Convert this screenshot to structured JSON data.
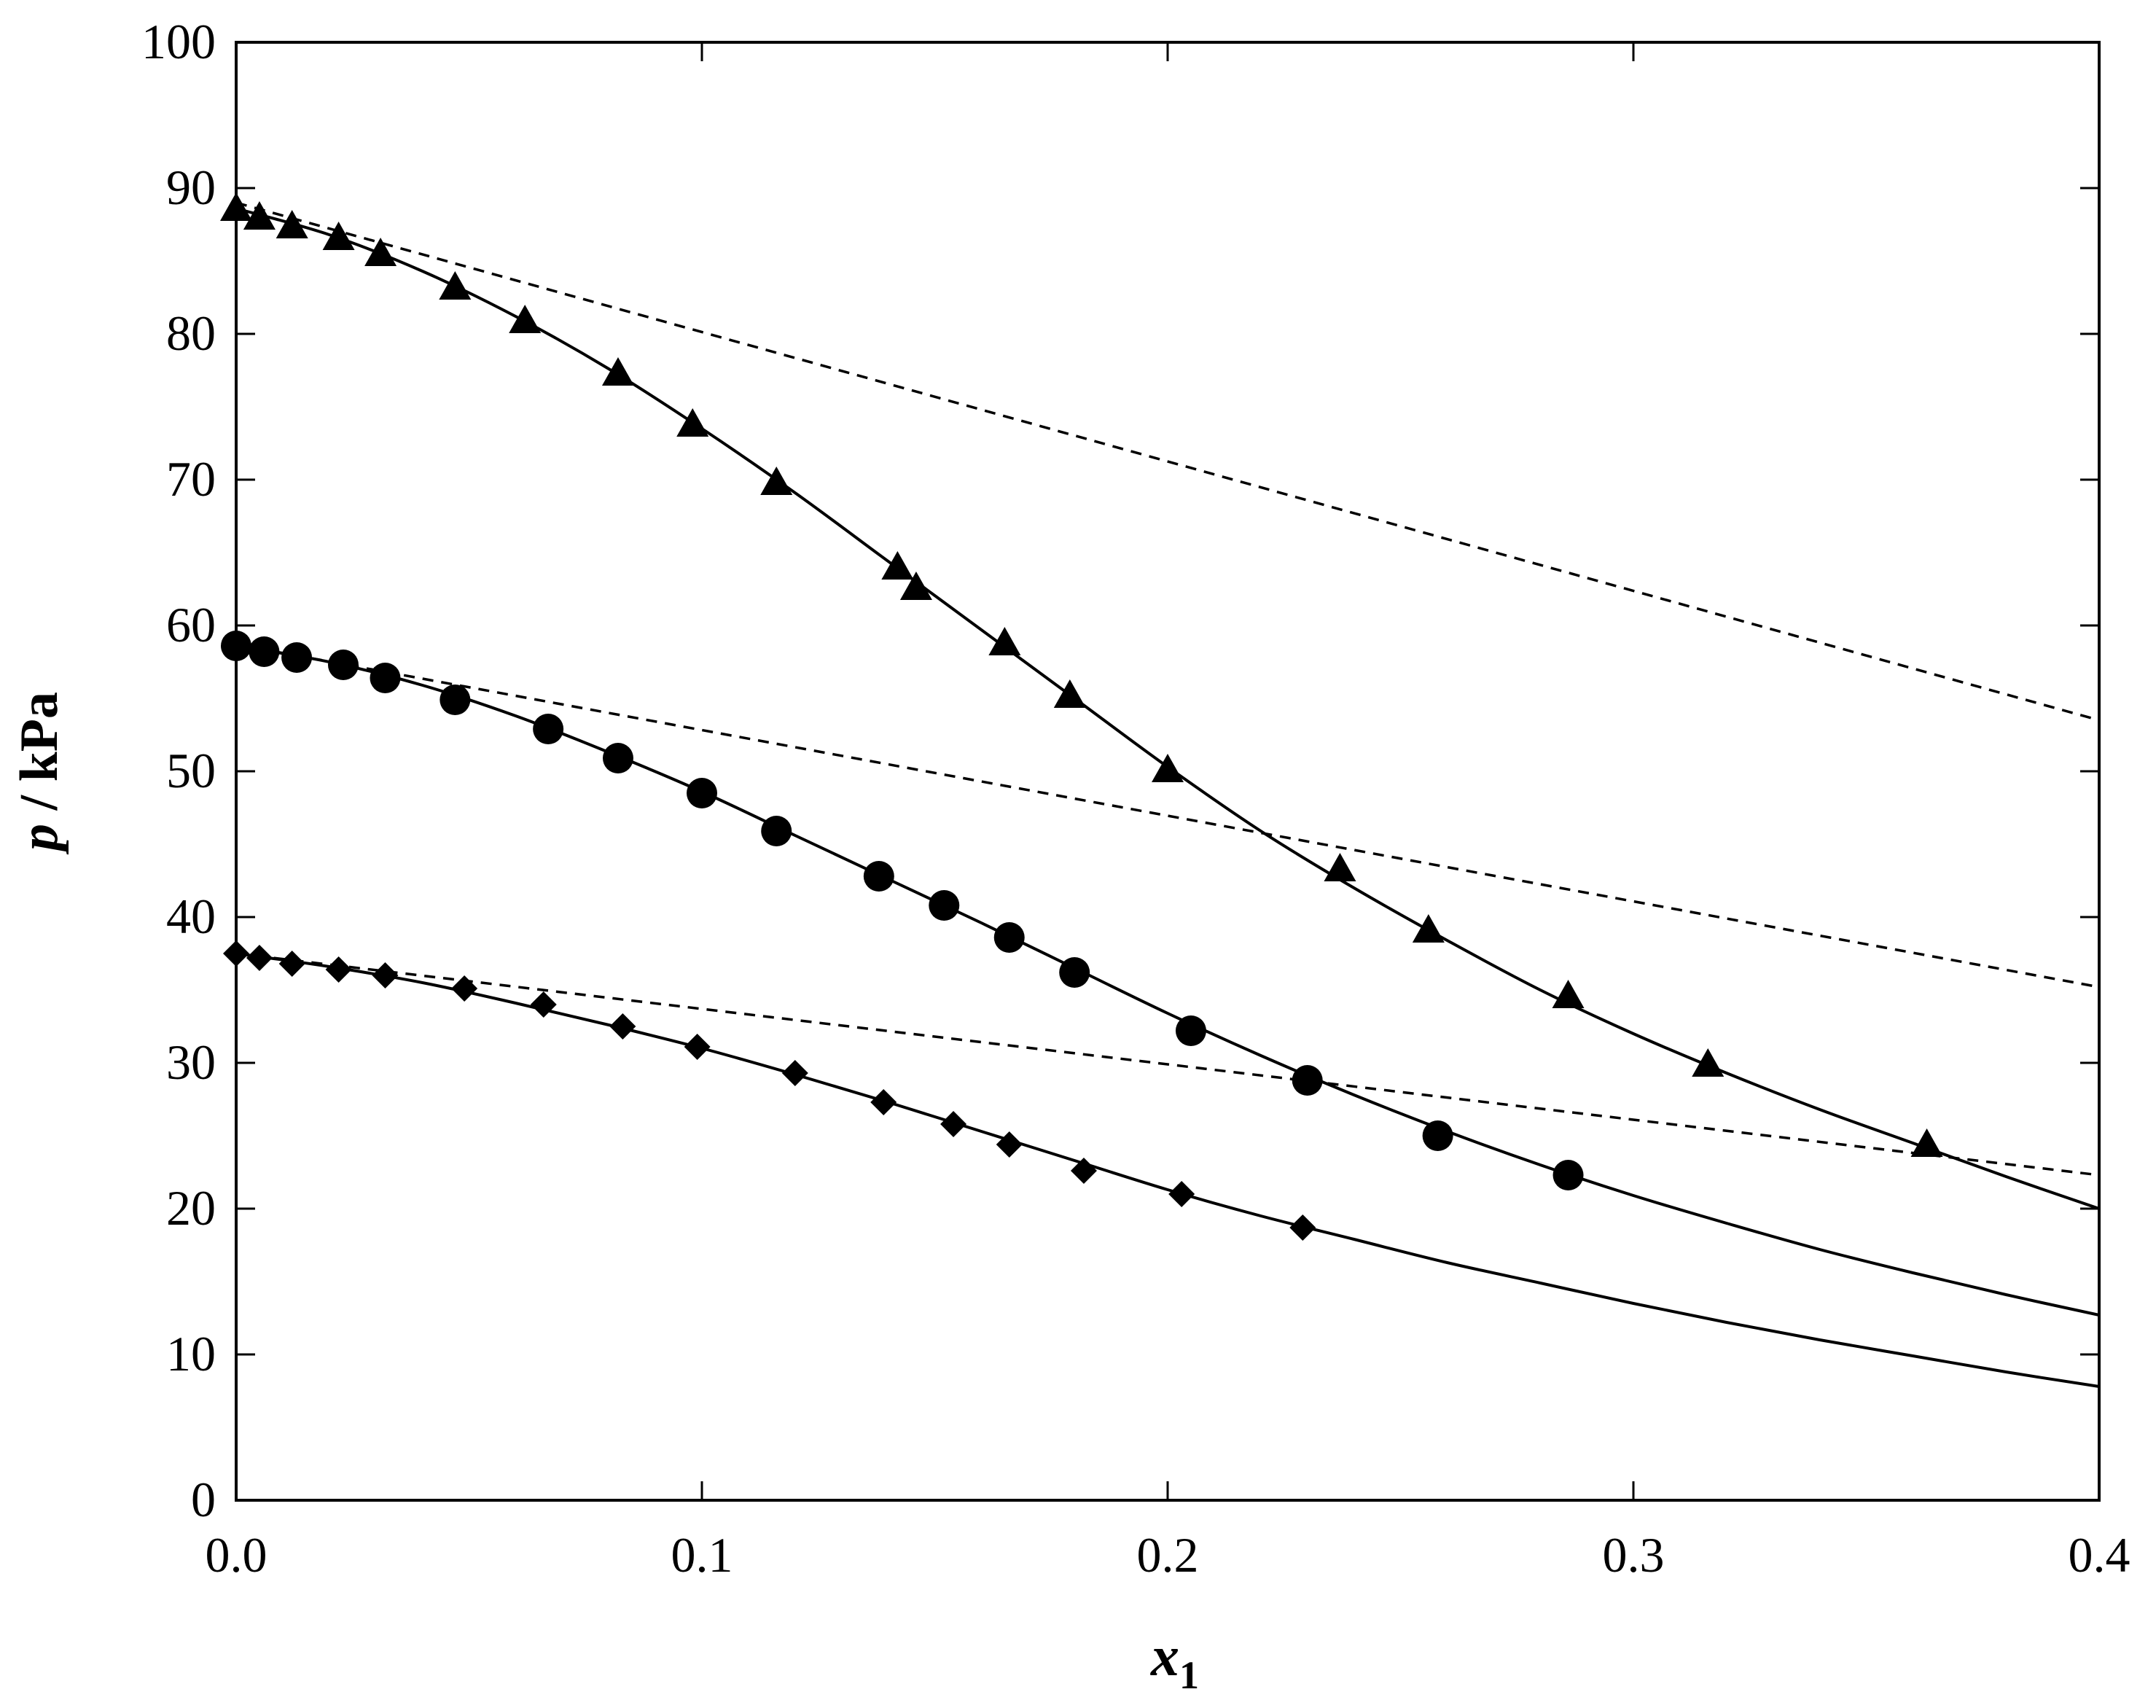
{
  "chart_data": {
    "type": "scatter",
    "xlabel": {
      "main": "x",
      "sub": "1"
    },
    "ylabel": {
      "italic": "p",
      "rest": " / kPa"
    },
    "xlim": [
      0,
      0.4
    ],
    "ylim": [
      0,
      100
    ],
    "x_ticks": [
      0.0,
      0.1,
      0.2,
      0.3,
      0.4
    ],
    "x_tick_labels": [
      "0.0",
      "0.1",
      "0.2",
      "0.3",
      "0.4"
    ],
    "y_ticks": [
      0,
      10,
      20,
      30,
      40,
      50,
      60,
      70,
      80,
      90,
      100
    ],
    "y_tick_labels": [
      "0",
      "10",
      "20",
      "30",
      "40",
      "50",
      "60",
      "70",
      "80",
      "90",
      "100"
    ],
    "grid": false,
    "series": [
      {
        "marker": "triangle",
        "points": [
          [
            0.0,
            88.6
          ],
          [
            0.005,
            88.0
          ],
          [
            0.012,
            87.4
          ],
          [
            0.022,
            86.6
          ],
          [
            0.031,
            85.5
          ],
          [
            0.047,
            83.2
          ],
          [
            0.062,
            80.9
          ],
          [
            0.082,
            77.3
          ],
          [
            0.098,
            73.8
          ],
          [
            0.116,
            69.8
          ],
          [
            0.142,
            64.0
          ],
          [
            0.146,
            62.6
          ],
          [
            0.165,
            58.8
          ],
          [
            0.179,
            55.2
          ],
          [
            0.2,
            50.1
          ],
          [
            0.237,
            43.3
          ],
          [
            0.256,
            39.1
          ],
          [
            0.286,
            34.6
          ],
          [
            0.316,
            29.9
          ],
          [
            0.363,
            24.4
          ]
        ],
        "fit_curve": [
          [
            0.0,
            88.6
          ],
          [
            0.02,
            86.8
          ],
          [
            0.04,
            84.3
          ],
          [
            0.06,
            81.2
          ],
          [
            0.08,
            77.6
          ],
          [
            0.1,
            73.5
          ],
          [
            0.12,
            69.1
          ],
          [
            0.14,
            64.4
          ],
          [
            0.16,
            59.7
          ],
          [
            0.18,
            55.0
          ],
          [
            0.2,
            50.3
          ],
          [
            0.22,
            45.9
          ],
          [
            0.24,
            42.0
          ],
          [
            0.26,
            38.4
          ],
          [
            0.28,
            35.0
          ],
          [
            0.3,
            32.0
          ],
          [
            0.32,
            29.3
          ],
          [
            0.34,
            26.8
          ],
          [
            0.36,
            24.5
          ],
          [
            0.38,
            22.2
          ],
          [
            0.4,
            20.0
          ]
        ],
        "raoult_line": [
          [
            0.0,
            89.0
          ],
          [
            0.4,
            53.5
          ]
        ]
      },
      {
        "marker": "circle",
        "points": [
          [
            0.0,
            58.6
          ],
          [
            0.006,
            58.2
          ],
          [
            0.013,
            57.8
          ],
          [
            0.023,
            57.3
          ],
          [
            0.032,
            56.4
          ],
          [
            0.047,
            54.9
          ],
          [
            0.067,
            52.9
          ],
          [
            0.082,
            50.9
          ],
          [
            0.1,
            48.5
          ],
          [
            0.116,
            45.9
          ],
          [
            0.138,
            42.8
          ],
          [
            0.152,
            40.8
          ],
          [
            0.166,
            38.6
          ],
          [
            0.18,
            36.2
          ],
          [
            0.205,
            32.2
          ],
          [
            0.23,
            28.8
          ],
          [
            0.258,
            25.0
          ],
          [
            0.286,
            22.3
          ]
        ],
        "fit_curve": [
          [
            0.0,
            58.6
          ],
          [
            0.02,
            57.5
          ],
          [
            0.04,
            55.9
          ],
          [
            0.06,
            53.8
          ],
          [
            0.08,
            51.3
          ],
          [
            0.1,
            48.6
          ],
          [
            0.12,
            45.6
          ],
          [
            0.14,
            42.6
          ],
          [
            0.16,
            39.6
          ],
          [
            0.18,
            36.5
          ],
          [
            0.2,
            33.4
          ],
          [
            0.22,
            30.5
          ],
          [
            0.24,
            27.8
          ],
          [
            0.26,
            25.3
          ],
          [
            0.28,
            23.0
          ],
          [
            0.3,
            20.9
          ],
          [
            0.32,
            19.0
          ],
          [
            0.34,
            17.2
          ],
          [
            0.36,
            15.6
          ],
          [
            0.38,
            14.1
          ],
          [
            0.4,
            12.7
          ]
        ],
        "raoult_line": [
          [
            0.0,
            58.7
          ],
          [
            0.4,
            35.2
          ]
        ]
      },
      {
        "marker": "diamond",
        "points": [
          [
            0.0,
            37.5
          ],
          [
            0.005,
            37.2
          ],
          [
            0.012,
            36.8
          ],
          [
            0.022,
            36.4
          ],
          [
            0.032,
            36.0
          ],
          [
            0.049,
            35.1
          ],
          [
            0.066,
            34.0
          ],
          [
            0.083,
            32.5
          ],
          [
            0.099,
            31.1
          ],
          [
            0.12,
            29.3
          ],
          [
            0.139,
            27.3
          ],
          [
            0.154,
            25.8
          ],
          [
            0.166,
            24.4
          ],
          [
            0.182,
            22.6
          ],
          [
            0.203,
            21.0
          ],
          [
            0.229,
            18.7
          ]
        ],
        "fit_curve": [
          [
            0.0,
            37.5
          ],
          [
            0.02,
            36.6
          ],
          [
            0.04,
            35.5
          ],
          [
            0.06,
            34.1
          ],
          [
            0.08,
            32.6
          ],
          [
            0.1,
            31.0
          ],
          [
            0.12,
            29.2
          ],
          [
            0.14,
            27.3
          ],
          [
            0.16,
            25.3
          ],
          [
            0.18,
            23.3
          ],
          [
            0.2,
            21.3
          ],
          [
            0.22,
            19.5
          ],
          [
            0.24,
            17.9
          ],
          [
            0.26,
            16.3
          ],
          [
            0.28,
            14.9
          ],
          [
            0.3,
            13.5
          ],
          [
            0.32,
            12.2
          ],
          [
            0.34,
            11.0
          ],
          [
            0.36,
            9.9
          ],
          [
            0.38,
            8.8
          ],
          [
            0.4,
            7.8
          ]
        ],
        "raoult_line": [
          [
            0.0,
            37.5
          ],
          [
            0.4,
            22.3
          ]
        ]
      }
    ]
  }
}
